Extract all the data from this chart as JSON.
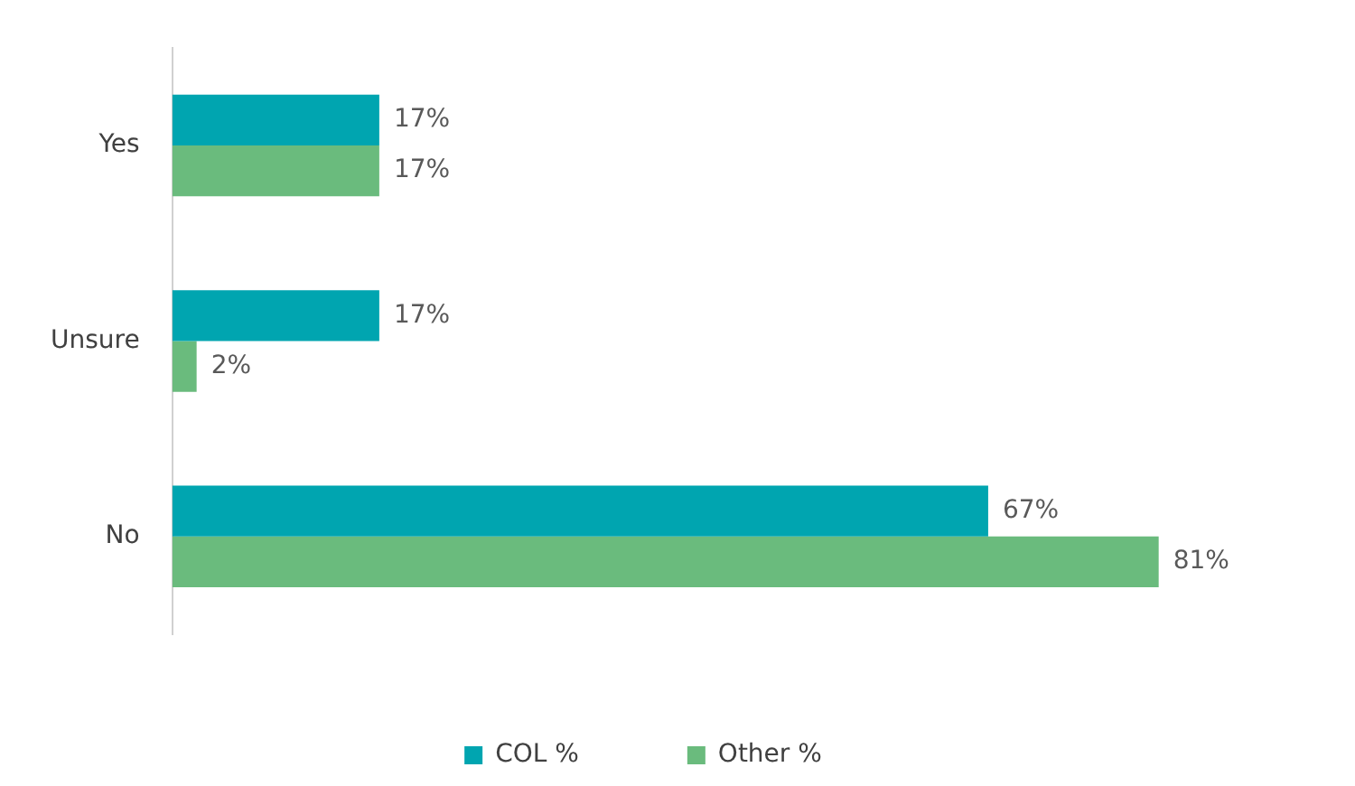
{
  "chart_data": {
    "type": "bar",
    "orientation": "horizontal",
    "categories": [
      "Yes",
      "Unsure",
      "No"
    ],
    "series": [
      {
        "name": "COL %",
        "color": "#00a5b0",
        "values": [
          17,
          17,
          67
        ],
        "value_labels": [
          "17%",
          "17%",
          "67%"
        ]
      },
      {
        "name": "Other %",
        "color": "#6abb7d",
        "values": [
          17,
          2,
          81
        ],
        "value_labels": [
          "17%",
          "2%",
          "81%"
        ]
      }
    ],
    "legend": "bottom"
  }
}
